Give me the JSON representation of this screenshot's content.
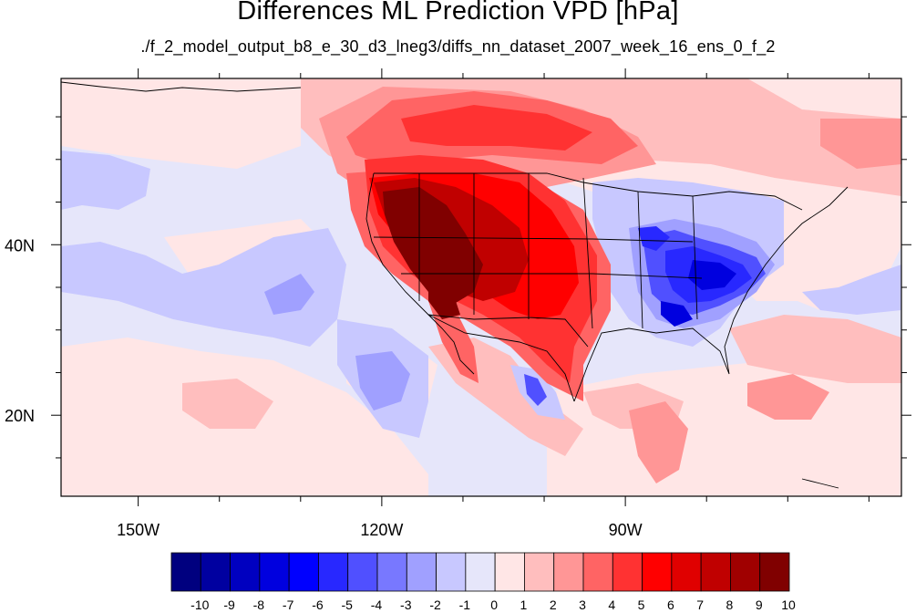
{
  "title": "Differences ML Prediction VPD [hPa]",
  "subtitle": "./f_2_model_output_b8_e_30_d3_lneg3/diffs_nn_dataset_2007_week_16_ens_0_f_2",
  "axes": {
    "x_ticks": [
      {
        "value": -150,
        "label": "150W"
      },
      {
        "value": -120,
        "label": "120W"
      },
      {
        "value": -90,
        "label": "90W"
      }
    ],
    "y_ticks": [
      {
        "value": 40,
        "label": "40N"
      },
      {
        "value": 20,
        "label": "20N"
      }
    ],
    "lon_range": [
      -159.5,
      -56
    ],
    "lat_range": [
      10.5,
      59.5
    ]
  },
  "colorbar": {
    "labels": [
      "-10",
      "-9",
      "-8",
      "-7",
      "-6",
      "-5",
      "-4",
      "-3",
      "-2",
      "-1",
      "0",
      "1",
      "2",
      "3",
      "4",
      "5",
      "6",
      "7",
      "8",
      "9",
      "10"
    ],
    "colors": [
      "#00007f",
      "#0000a0",
      "#0000c0",
      "#0000df",
      "#0000ff",
      "#2828ff",
      "#5050ff",
      "#7878ff",
      "#a0a0ff",
      "#c8c8ff",
      "#e6e6fa",
      "#ffe6e6",
      "#ffbebe",
      "#ff9696",
      "#ff6464",
      "#ff3232",
      "#ff0000",
      "#e00000",
      "#c00000",
      "#a00000",
      "#800000"
    ]
  },
  "map": {
    "background_color": "#e6e6fa",
    "border_color": "#000000"
  }
}
